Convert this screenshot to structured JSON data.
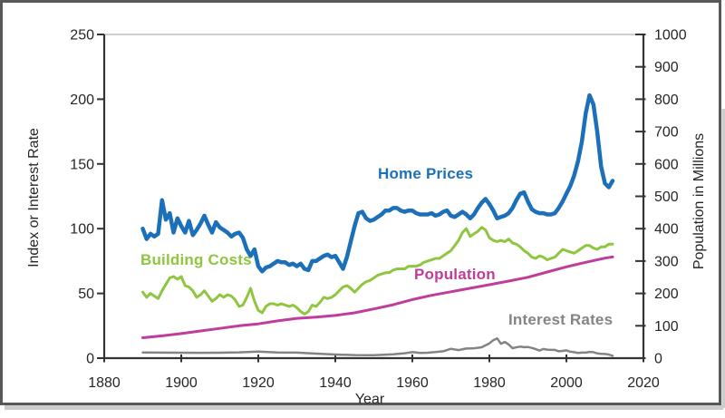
{
  "figure": {
    "frame_border_color": "#57585a",
    "plot_top_border_color": "#bfbfbf",
    "axis_color": "#333333",
    "text_color": "#262626",
    "background": "#ffffff"
  },
  "chart_data": {
    "type": "line",
    "title": "",
    "xlabel": "Year",
    "ylabel_left": "Index or Interest Rate",
    "ylabel_right": "Population in Millions",
    "xlim": [
      1880,
      2020
    ],
    "ylim_left": [
      0,
      250
    ],
    "ylim_right": [
      0,
      1000
    ],
    "x_ticks": [
      1880,
      1900,
      1920,
      1940,
      1960,
      1980,
      2000,
      2020
    ],
    "y_left_ticks": [
      0,
      50,
      100,
      150,
      200,
      250
    ],
    "y_right_ticks": [
      0,
      100,
      200,
      300,
      400,
      500,
      600,
      700,
      800,
      900,
      1000
    ],
    "grid": "off (top plot border only)",
    "legend_position": "inline labels near lines",
    "series": [
      {
        "name": "Home Prices",
        "axis": "left",
        "color": "#1b70b9",
        "line_width": 4.5,
        "x": [
          1890,
          1891,
          1892,
          1893,
          1894,
          1895,
          1896,
          1897,
          1898,
          1899,
          1900,
          1901,
          1902,
          1903,
          1904,
          1905,
          1906,
          1907,
          1908,
          1909,
          1910,
          1911,
          1912,
          1913,
          1914,
          1915,
          1916,
          1917,
          1918,
          1919,
          1920,
          1921,
          1922,
          1923,
          1924,
          1925,
          1926,
          1927,
          1928,
          1929,
          1930,
          1931,
          1932,
          1933,
          1934,
          1935,
          1936,
          1937,
          1938,
          1939,
          1940,
          1941,
          1942,
          1943,
          1944,
          1945,
          1946,
          1947,
          1948,
          1949,
          1950,
          1951,
          1952,
          1953,
          1954,
          1955,
          1956,
          1957,
          1958,
          1959,
          1960,
          1961,
          1962,
          1963,
          1964,
          1965,
          1966,
          1967,
          1968,
          1969,
          1970,
          1971,
          1972,
          1973,
          1974,
          1975,
          1976,
          1977,
          1978,
          1979,
          1980,
          1981,
          1982,
          1983,
          1984,
          1985,
          1986,
          1987,
          1988,
          1989,
          1990,
          1991,
          1992,
          1993,
          1994,
          1995,
          1996,
          1997,
          1998,
          1999,
          2000,
          2001,
          2002,
          2003,
          2004,
          2005,
          2006,
          2007,
          2008,
          2009,
          2010,
          2011,
          2012
        ],
        "y": [
          100,
          92,
          96,
          94,
          96,
          122,
          107,
          112,
          97,
          108,
          102,
          97,
          106,
          95,
          99,
          104,
          110,
          103,
          97,
          105,
          101,
          99,
          97,
          94,
          96,
          97,
          93,
          84,
          79,
          84,
          71,
          67,
          70,
          71,
          73,
          75,
          74,
          74,
          72,
          73,
          71,
          73,
          69,
          68,
          75,
          75,
          77,
          79,
          80,
          78,
          79,
          74,
          69,
          78,
          90,
          102,
          112,
          113,
          108,
          106,
          107,
          109,
          111,
          114,
          114,
          116,
          116,
          114,
          113,
          114,
          114,
          112,
          111,
          111,
          111,
          112,
          110,
          111,
          113,
          114,
          110,
          109,
          111,
          113,
          111,
          108,
          111,
          116,
          120,
          123,
          119,
          114,
          108,
          109,
          110,
          112,
          116,
          122,
          127,
          128,
          121,
          115,
          113,
          112,
          112,
          111,
          111,
          112,
          116,
          121,
          127,
          133,
          141,
          152,
          167,
          189,
          203,
          196,
          175,
          148,
          135,
          132,
          137
        ]
      },
      {
        "name": "Building Costs",
        "axis": "left",
        "color": "#8fc63f",
        "line_width": 3,
        "x": [
          1890,
          1891,
          1892,
          1893,
          1894,
          1895,
          1896,
          1897,
          1898,
          1899,
          1900,
          1901,
          1902,
          1903,
          1904,
          1905,
          1906,
          1907,
          1908,
          1909,
          1910,
          1911,
          1912,
          1913,
          1914,
          1915,
          1916,
          1917,
          1918,
          1919,
          1920,
          1921,
          1922,
          1923,
          1924,
          1925,
          1926,
          1927,
          1928,
          1929,
          1930,
          1931,
          1932,
          1933,
          1934,
          1935,
          1936,
          1937,
          1938,
          1939,
          1940,
          1941,
          1942,
          1943,
          1944,
          1945,
          1946,
          1947,
          1948,
          1949,
          1950,
          1951,
          1952,
          1953,
          1954,
          1955,
          1956,
          1957,
          1958,
          1959,
          1960,
          1961,
          1962,
          1963,
          1964,
          1965,
          1966,
          1967,
          1968,
          1969,
          1970,
          1971,
          1972,
          1973,
          1974,
          1975,
          1976,
          1977,
          1978,
          1979,
          1980,
          1981,
          1982,
          1983,
          1984,
          1985,
          1986,
          1987,
          1988,
          1989,
          1990,
          1991,
          1992,
          1993,
          1994,
          1995,
          1996,
          1997,
          1998,
          1999,
          2000,
          2001,
          2002,
          2003,
          2004,
          2005,
          2006,
          2007,
          2008,
          2009,
          2010,
          2011,
          2012
        ],
        "y": [
          51,
          47,
          50,
          48,
          46,
          52,
          57,
          62,
          63,
          61,
          63,
          56,
          55,
          52,
          47,
          49,
          52,
          48,
          44,
          46,
          49,
          47,
          49,
          48,
          45,
          40,
          41,
          47,
          54,
          44,
          37,
          35,
          40,
          42,
          42,
          41,
          42,
          41,
          40,
          41,
          39,
          36,
          34,
          36,
          41,
          40,
          43,
          47,
          46,
          47,
          49,
          52,
          55,
          56,
          54,
          51,
          54,
          57,
          59,
          60,
          62,
          64,
          65,
          66,
          66,
          68,
          69,
          69,
          69,
          71,
          71,
          71,
          72,
          74,
          75,
          76,
          77,
          77,
          79,
          81,
          83,
          87,
          91,
          97,
          100,
          94,
          96,
          98,
          101,
          99,
          93,
          91,
          90,
          91,
          90,
          92,
          89,
          88,
          86,
          83,
          81,
          78,
          77,
          79,
          78,
          76,
          77,
          78,
          81,
          84,
          83,
          82,
          81,
          83,
          85,
          87,
          87,
          85,
          84,
          86,
          86,
          88,
          88
        ]
      },
      {
        "name": "Population",
        "axis": "right",
        "color": "#bf3d9b",
        "line_width": 3,
        "x": [
          1890,
          1895,
          1900,
          1905,
          1910,
          1915,
          1920,
          1925,
          1930,
          1935,
          1940,
          1945,
          1950,
          1955,
          1960,
          1965,
          1970,
          1975,
          1980,
          1985,
          1990,
          1995,
          2000,
          2005,
          2010,
          2012
        ],
        "y": [
          63,
          69,
          76,
          84,
          92,
          100,
          106,
          115,
          123,
          127,
          132,
          140,
          152,
          165,
          181,
          194,
          205,
          216,
          227,
          238,
          250,
          266,
          282,
          296,
          309,
          313
        ]
      },
      {
        "name": "Interest Rates",
        "axis": "left",
        "color": "#828487",
        "line_width": 2.5,
        "x": [
          1890,
          1895,
          1900,
          1905,
          1910,
          1915,
          1920,
          1925,
          1930,
          1935,
          1940,
          1945,
          1950,
          1955,
          1958,
          1960,
          1962,
          1964,
          1966,
          1968,
          1970,
          1972,
          1974,
          1976,
          1978,
          1980,
          1981,
          1982,
          1983,
          1984,
          1985,
          1986,
          1987,
          1988,
          1989,
          1990,
          1991,
          1992,
          1993,
          1994,
          1995,
          1996,
          1997,
          1998,
          1999,
          2000,
          2001,
          2002,
          2003,
          2004,
          2005,
          2006,
          2007,
          2008,
          2009,
          2010,
          2011,
          2012
        ],
        "y": [
          4.4,
          4.3,
          4.2,
          4.1,
          4.2,
          4.5,
          5.1,
          4.4,
          4.3,
          3.5,
          2.8,
          2.4,
          2.3,
          3.0,
          3.8,
          4.7,
          4.0,
          4.2,
          4.7,
          5.3,
          7.2,
          6.2,
          7.4,
          7.6,
          8.4,
          11.4,
          13.9,
          15.3,
          11.1,
          12.5,
          10.6,
          7.7,
          8.4,
          8.9,
          8.5,
          8.6,
          7.9,
          7.0,
          5.9,
          7.1,
          6.6,
          6.4,
          6.4,
          5.3,
          5.6,
          6.0,
          5.0,
          4.6,
          4.0,
          4.3,
          4.3,
          4.8,
          4.6,
          3.7,
          3.3,
          3.2,
          2.8,
          1.8
        ]
      }
    ]
  }
}
